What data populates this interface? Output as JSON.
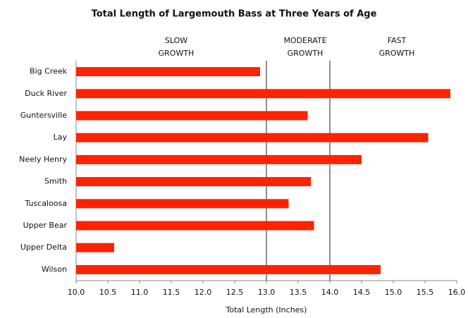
{
  "chart_data": {
    "type": "bar",
    "orientation": "horizontal",
    "title": "Total Length of Largemouth Bass at Three Years of Age",
    "x_label": "Total Length (Inches)",
    "categories": [
      "Big Creek",
      "Duck River",
      "Guntersville",
      "Lay",
      "Neely Henry",
      "Smith",
      "Tuscaloosa",
      "Upper Bear",
      "Upper Delta",
      "Wilson"
    ],
    "values": [
      12.9,
      15.9,
      13.65,
      15.55,
      14.5,
      13.7,
      13.35,
      13.75,
      10.6,
      14.8
    ],
    "color": "#ff2200",
    "xlim": [
      10,
      16
    ],
    "xticks": [
      {
        "value": 10,
        "label": "10.0"
      },
      10.5,
      {
        "value": 11,
        "label": "11.0"
      },
      11.5,
      {
        "value": 12,
        "label": "12.0"
      },
      12.5,
      {
        "value": 13,
        "label": "13.0"
      },
      13.5,
      {
        "value": 14,
        "label": "14.0"
      },
      14.5,
      {
        "value": 15,
        "label": "15.0"
      },
      15.5,
      {
        "value": 16,
        "label": "16.0"
      }
    ],
    "reference_lines": [
      13,
      14
    ],
    "annotations": [
      [
        "SLOW",
        "GROWTH"
      ],
      [
        "MODERATE",
        "GROWTH"
      ],
      [
        "FAST",
        "GROWTH"
      ]
    ]
  }
}
